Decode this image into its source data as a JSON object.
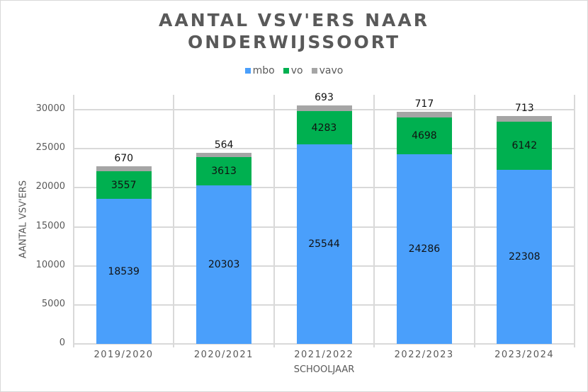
{
  "chart_data": {
    "type": "bar",
    "stacked": true,
    "title": "AANTAL VSV'ERS NAAR ONDERWIJSSOORT",
    "title_lines": [
      "AANTAL VSV'ERS NAAR",
      "ONDERWIJSSOORT"
    ],
    "xlabel": "SCHOOLJAAR",
    "ylabel": "AANTAL VSV'ERS",
    "ylim": [
      0,
      30000
    ],
    "yticks": [
      "0",
      "5000",
      "10000",
      "15000",
      "20000",
      "25000",
      "30000"
    ],
    "grid": true,
    "legend_position": "top",
    "categories": [
      "2019/2020",
      "2020/2021",
      "2021/2022",
      "2022/2023",
      "2023/2024"
    ],
    "series": [
      {
        "name": "mbo",
        "color": "#4a9ffb",
        "values": [
          18539,
          20303,
          25544,
          24286,
          22308
        ]
      },
      {
        "name": "vo",
        "color": "#00b050",
        "values": [
          3557,
          3613,
          4283,
          4698,
          6142
        ]
      },
      {
        "name": "vavo",
        "color": "#a5a5a5",
        "values": [
          670,
          564,
          693,
          717,
          713
        ]
      }
    ]
  },
  "labels": {
    "mbo": [
      "18539",
      "20303",
      "25544",
      "24286",
      "22308"
    ],
    "vo": [
      "3557",
      "3613",
      "4283",
      "4698",
      "6142"
    ],
    "vavo": [
      "670",
      "564",
      "693",
      "717",
      "713"
    ]
  }
}
